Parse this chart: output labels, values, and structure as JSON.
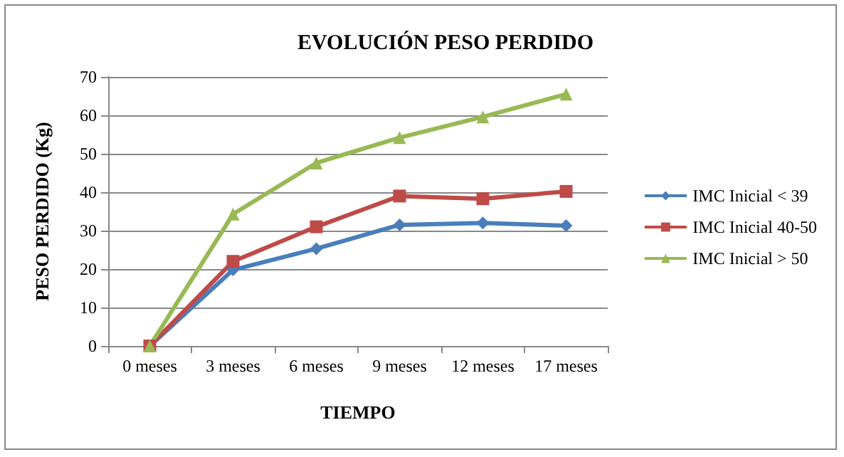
{
  "chart_data": {
    "type": "line",
    "title": "EVOLUCIÓN PESO PERDIDO",
    "xlabel": "TIEMPO",
    "ylabel": "PESO PERDIDO (Kg)",
    "categories": [
      "0 meses",
      "3 meses",
      "6 meses",
      "9 meses",
      "12 meses",
      "17 meses"
    ],
    "series": [
      {
        "name": "IMC Inicial < 39",
        "color": "#4a7ebb",
        "marker": "diamond",
        "values": [
          0,
          19.8,
          25.3,
          31.5,
          32,
          31.3
        ]
      },
      {
        "name": "IMC Inicial 40-50",
        "color": "#be4b48",
        "marker": "square",
        "values": [
          0,
          22,
          31,
          39,
          38.3,
          40.2
        ]
      },
      {
        "name": "IMC Inicial > 50",
        "color": "#98b954",
        "marker": "triangle",
        "values": [
          0,
          34.3,
          47.6,
          54.2,
          59.6,
          65.5
        ]
      }
    ],
    "ylim": [
      0,
      70
    ],
    "yticks": [
      0,
      10,
      20,
      30,
      40,
      50,
      60,
      70
    ],
    "grid": "y",
    "legend": "right",
    "line_style": "solid"
  }
}
